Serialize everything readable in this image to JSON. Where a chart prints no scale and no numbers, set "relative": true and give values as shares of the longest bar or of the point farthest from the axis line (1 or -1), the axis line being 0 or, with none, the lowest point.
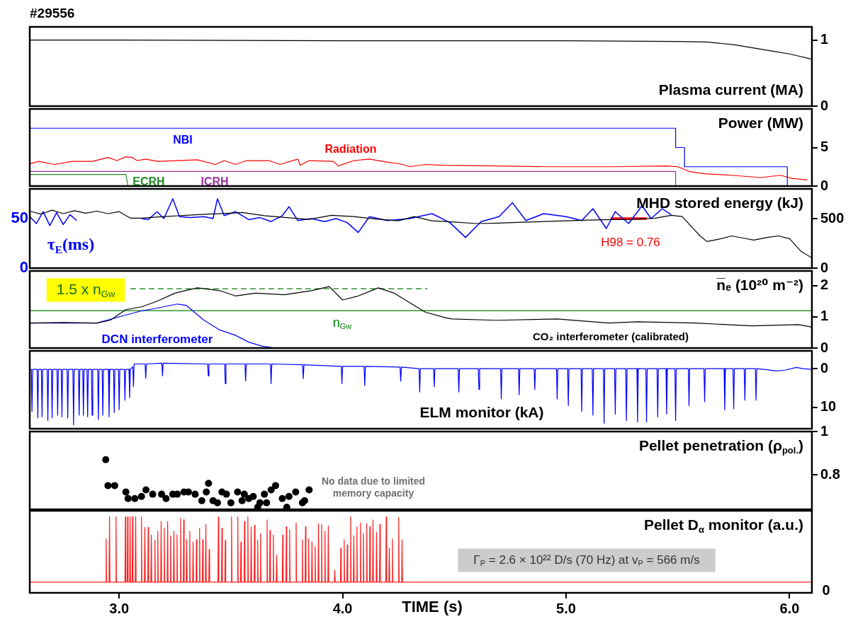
{
  "chart_data": [
    {
      "type": "line",
      "title": "Plasma current (MA)",
      "annotations": [
        "#29556"
      ],
      "x": [
        2.6,
        3.0,
        4.0,
        5.0,
        5.5,
        5.63,
        5.75,
        5.84,
        5.93,
        6.0,
        6.1
      ],
      "values": [
        1.0,
        1.0,
        0.99,
        0.99,
        0.98,
        0.97,
        0.93,
        0.88,
        0.83,
        0.79,
        0.71
      ],
      "color": "#000000",
      "xlim": [
        2.6,
        6.1
      ],
      "ylim": [
        0,
        1.2
      ],
      "yticks": [
        0,
        1
      ],
      "tick_labels": "y"
    },
    {
      "type": "line",
      "title": "Power (MW)",
      "xlim": [
        2.6,
        6.1
      ],
      "ylim": [
        0,
        10
      ],
      "yticks": [
        0,
        5
      ],
      "tick_labels": "y",
      "series": [
        {
          "name": "NBI",
          "color": "#0000ff",
          "x": [
            2.6,
            5.49,
            5.49,
            5.53,
            5.53,
            5.99,
            5.99
          ],
          "values": [
            7.5,
            7.5,
            5.0,
            5.0,
            2.5,
            2.5,
            0
          ]
        },
        {
          "name": "Radiation",
          "color": "#ff0000",
          "x": [
            2.6,
            2.64,
            2.71,
            2.79,
            2.88,
            2.95,
            2.99,
            3.03,
            3.06,
            3.08,
            3.12,
            3.17,
            3.25,
            3.35,
            3.43,
            3.47,
            3.52,
            3.57,
            3.67,
            3.72,
            3.8,
            3.81,
            3.85,
            3.96,
            3.98,
            4.05,
            4.12,
            4.18,
            4.27,
            4.3,
            4.37,
            4.45,
            4.69,
            4.94,
            5.2,
            5.45,
            5.5,
            5.55,
            5.62,
            5.74,
            5.87,
            5.96,
            6.01,
            6.08
          ],
          "values": [
            2.9,
            3.2,
            2.8,
            3.2,
            3.2,
            3.7,
            3.3,
            3.8,
            3.7,
            3.3,
            3.5,
            3.2,
            3.3,
            3.4,
            2.8,
            3.3,
            2.8,
            3.3,
            3.3,
            2.8,
            3.5,
            2.7,
            3.3,
            3.2,
            2.6,
            3.3,
            3.5,
            3.2,
            2.8,
            2.5,
            2.8,
            2.7,
            2.6,
            2.5,
            2.5,
            2.6,
            2.5,
            1.9,
            1.6,
            1.4,
            1.1,
            1.4,
            1.0,
            0.8
          ]
        },
        {
          "name": "ECRH",
          "color": "#228b22",
          "x": [
            2.6,
            3.03,
            3.04,
            3.2
          ],
          "values": [
            1.5,
            1.5,
            0,
            0
          ]
        },
        {
          "name": "ICRH",
          "color": "#993399",
          "x": [
            2.6,
            5.49,
            5.49
          ],
          "values": [
            1.9,
            1.9,
            0
          ]
        }
      ]
    },
    {
      "type": "line",
      "title": "MHD stored energy (kJ)",
      "xlim": [
        2.6,
        6.1
      ],
      "ylim": [
        0,
        800
      ],
      "yticks": [
        0,
        500
      ],
      "y2lim": [
        0,
        80
      ],
      "y2ticks": [
        0,
        50
      ],
      "tick_labels": "y",
      "series": [
        {
          "color": "#000000",
          "x": [
            2.6,
            2.65,
            2.7,
            2.75,
            2.8,
            2.85,
            2.9,
            2.95,
            3.0,
            3.05,
            3.1,
            3.2,
            3.3,
            3.4,
            3.5,
            3.55,
            3.65,
            3.75,
            3.85,
            3.95,
            4.05,
            4.15,
            4.25,
            4.32,
            4.4,
            4.5,
            4.6,
            4.7,
            4.8,
            4.9,
            5.0,
            5.1,
            5.2,
            5.3,
            5.4,
            5.47,
            5.52,
            5.56,
            5.6,
            5.63,
            5.68,
            5.74,
            5.8,
            5.84,
            5.9,
            5.95,
            6.0,
            6.05,
            6.1
          ],
          "values": [
            575,
            545,
            585,
            550,
            580,
            555,
            575,
            550,
            570,
            505,
            505,
            520,
            533,
            545,
            555,
            561,
            530,
            510,
            492,
            533,
            520,
            495,
            478,
            520,
            478,
            465,
            450,
            455,
            464,
            470,
            478,
            485,
            490,
            492,
            505,
            533,
            520,
            420,
            325,
            269,
            290,
            325,
            300,
            283,
            310,
            325,
            297,
            172,
            103
          ]
        },
        {
          "name": "τ$_{E}$(ms)",
          "color": "#0000ff",
          "axis": "y2",
          "x": [
            2.6,
            2.63,
            2.66,
            2.69,
            2.72,
            2.75,
            2.78,
            2.81,
            2.82,
            3.1,
            3.13,
            3.17,
            3.2,
            3.24,
            3.27,
            3.32,
            3.38,
            3.42,
            3.44,
            3.47,
            3.52,
            3.58,
            3.63,
            3.68,
            3.73,
            3.76,
            3.8,
            3.86,
            3.92,
            3.97,
            4.02,
            4.07,
            4.12,
            4.2,
            4.3,
            4.4,
            4.48,
            4.55,
            4.62,
            4.7,
            4.76,
            4.82,
            4.9,
            5.0,
            5.07,
            5.12,
            5.18,
            5.22,
            5.28,
            5.34,
            5.38,
            5.43,
            5.47
          ],
          "values": [
            52,
            45,
            57,
            43,
            56,
            44,
            54,
            48,
            null,
            50,
            49,
            57,
            50,
            70,
            52,
            51,
            52,
            50,
            70,
            53,
            57,
            49,
            51,
            47,
            53,
            62,
            48,
            50,
            47,
            50,
            46,
            36,
            52,
            48,
            50,
            55,
            46,
            31,
            47,
            52,
            66,
            48,
            55,
            52,
            48,
            60,
            40,
            57,
            45,
            63,
            50,
            60,
            54
          ]
        },
        {
          "name": "H98 = 0.76",
          "color": "#ff0000",
          "x": [
            5.2,
            5.36
          ],
          "values": [
            500,
            500
          ]
        }
      ]
    },
    {
      "type": "line",
      "title": "n̅ₑ (10²⁰ m⁻²)",
      "xlim": [
        2.6,
        6.1
      ],
      "ylim": [
        0,
        2.47
      ],
      "yticks": [
        0,
        1,
        2
      ],
      "tick_labels": "y",
      "ref_lines": [
        {
          "axis": "y",
          "value": 1.2,
          "label": "n$_{Gw}$",
          "color": "#008000"
        }
      ],
      "series": [
        {
          "name": "CO₂ interferometer (calibrated)",
          "color": "#000000",
          "x": [
            2.6,
            2.75,
            2.9,
            2.96,
            3.03,
            3.1,
            3.17,
            3.25,
            3.35,
            3.45,
            3.52,
            3.61,
            3.74,
            3.86,
            3.94,
            4.0,
            4.07,
            4.16,
            4.23,
            4.31,
            4.37,
            4.46,
            4.49,
            4.69,
            4.96,
            5.19,
            5.32,
            5.58,
            5.83,
            6.04,
            6.1
          ],
          "values": [
            0.8,
            0.82,
            0.8,
            0.89,
            1.23,
            1.32,
            1.5,
            1.76,
            1.93,
            1.84,
            1.67,
            1.76,
            1.71,
            1.84,
            1.97,
            1.54,
            1.67,
            1.93,
            1.76,
            1.41,
            1.15,
            0.97,
            0.93,
            0.89,
            0.93,
            0.8,
            0.84,
            0.8,
            0.71,
            0.75,
            0.67
          ]
        },
        {
          "name": "DCN interferometer",
          "color": "#0000ff",
          "x": [
            2.6,
            2.9,
            3.01,
            3.1,
            3.17,
            3.26,
            3.3,
            3.38,
            3.45,
            3.52,
            3.58,
            3.64,
            3.68
          ],
          "values": [
            0.8,
            0.8,
            1.02,
            1.19,
            1.28,
            1.41,
            1.37,
            0.89,
            0.58,
            0.41,
            0.19,
            0.06,
            0.02
          ]
        },
        {
          "name": "1.5 x n$_{Gw}$",
          "color": "#008000",
          "line_style": "dashed",
          "x": [
            3.05,
            4.38
          ],
          "values": [
            1.9,
            1.9
          ]
        }
      ]
    },
    {
      "type": "line",
      "title": "ELM monitor (kA)",
      "xlim": [
        2.6,
        6.1
      ],
      "ylim": [
        15.6,
        -4.6
      ],
      "yticks": [
        0,
        10
      ],
      "tick_labels": "y",
      "color": "#0000ff",
      "x": [
        2.6,
        2.607,
        2.61,
        2.613,
        2.633,
        2.636,
        2.639,
        2.652,
        2.655,
        2.658,
        2.678,
        2.681,
        2.684,
        2.697,
        2.7,
        2.703,
        2.722,
        2.725,
        2.728,
        2.741,
        2.744,
        2.747,
        2.767,
        2.77,
        2.773,
        2.793,
        2.796,
        2.799,
        2.818,
        2.821,
        2.824,
        2.837,
        2.84,
        2.843,
        2.856,
        2.859,
        2.862,
        2.876,
        2.879,
        2.882,
        2.904,
        2.907,
        2.91,
        2.924,
        2.927,
        2.93,
        2.952,
        2.955,
        2.958,
        2.975,
        2.978,
        2.981,
        2.997,
        3.0,
        3.003,
        3.023,
        3.026,
        3.029,
        3.044,
        3.047,
        3.05,
        3.061,
        3.064,
        3.067,
        3.116,
        3.119,
        3.122,
        3.191,
        3.194,
        3.197,
        3.396,
        3.399,
        3.402,
        3.472,
        3.475,
        3.478,
        3.563,
        3.566,
        3.569,
        3.677,
        3.68,
        3.683,
        3.821,
        3.824,
        3.827,
        3.994,
        3.997,
        4.0,
        4.096,
        4.099,
        4.102,
        4.257,
        4.26,
        4.263,
        4.342,
        4.345,
        4.348,
        4.407,
        4.41,
        4.413,
        4.517,
        4.52,
        4.523,
        4.607,
        4.61,
        4.613,
        4.707,
        4.71,
        4.713,
        4.787,
        4.79,
        4.793,
        4.857,
        4.86,
        4.863,
        4.957,
        4.96,
        4.963,
        5.007,
        5.01,
        5.013,
        5.067,
        5.07,
        5.073,
        5.117,
        5.12,
        5.123,
        5.167,
        5.17,
        5.173,
        5.217,
        5.22,
        5.223,
        5.267,
        5.27,
        5.273,
        5.317,
        5.32,
        5.323,
        5.357,
        5.36,
        5.363,
        5.407,
        5.41,
        5.413,
        5.447,
        5.45,
        5.453,
        5.487,
        5.49,
        5.493,
        5.547,
        5.55,
        5.553,
        5.617,
        5.62,
        5.623,
        5.707,
        5.71,
        5.713,
        5.747,
        5.75,
        5.753,
        5.797,
        5.8,
        5.803,
        5.847,
        5.85,
        5.853,
        5.9,
        5.94,
        5.98,
        6.03,
        6.06,
        6.1
      ],
      "values": [
        0.2,
        0.2,
        11.1,
        0.2,
        0.2,
        12.8,
        0.2,
        0.2,
        12.5,
        0.2,
        0.2,
        13.5,
        0.2,
        0.2,
        12.8,
        0.2,
        0.2,
        12.1,
        0.2,
        0.2,
        12.5,
        0.2,
        0.2,
        12.8,
        0.2,
        0.2,
        14.6,
        0.2,
        0.2,
        12.1,
        0.2,
        0.2,
        12.1,
        0.2,
        0.2,
        12.5,
        0.2,
        0.2,
        12.1,
        0.2,
        0.2,
        13.2,
        0.2,
        0.2,
        12.1,
        0.2,
        0.2,
        12.5,
        0.2,
        0.2,
        11.4,
        0.2,
        0.2,
        10.7,
        0.2,
        0.2,
        8.2,
        0.2,
        0.2,
        7.5,
        0.2,
        -0.5,
        4.7,
        -1.2,
        -1.2,
        2.5,
        -1.2,
        -1.4,
        1.9,
        -1.4,
        -1.2,
        1.9,
        -1.2,
        -1.2,
        3.9,
        -1.2,
        -1.2,
        3.2,
        -1.2,
        -1.2,
        3.9,
        -1.2,
        -1.0,
        2.6,
        -1.0,
        -0.6,
        3.9,
        -0.6,
        -0.6,
        4.4,
        -0.6,
        -0.4,
        3.3,
        -0.4,
        0,
        6.1,
        0,
        0,
        4.7,
        0,
        0,
        6.1,
        0,
        0,
        5.4,
        0,
        0,
        7.9,
        0,
        0,
        6.8,
        0,
        0,
        5.4,
        0,
        0,
        7.9,
        0,
        0,
        9.6,
        0,
        0,
        11.1,
        0,
        0,
        12.1,
        0,
        0,
        14.2,
        0,
        0,
        11.8,
        0,
        0,
        13.5,
        0,
        0,
        13.9,
        0,
        0,
        13.9,
        0,
        0,
        12.5,
        0,
        0,
        11.8,
        0,
        0,
        13.5,
        0,
        0,
        9.6,
        0,
        0,
        8.6,
        0,
        0,
        10.7,
        0,
        0,
        10.4,
        0,
        0,
        8.2,
        0,
        0,
        8.2,
        0,
        0.3,
        0.6,
        0.4,
        -0.3,
        0,
        0.2
      ]
    },
    {
      "type": "scatter",
      "title": "Pellet penetration (ρ$_{pol.}$)",
      "annotations": [
        "No data due to limited memory capacity"
      ],
      "xlim": [
        2.6,
        6.1
      ],
      "ylim": [
        0.64,
        1.0
      ],
      "yticks": [
        0.8,
        1
      ],
      "tick_labels": "y",
      "marker": "circle",
      "color": "#000000",
      "x": [
        2.94,
        2.95,
        2.98,
        3.03,
        3.04,
        3.07,
        3.1,
        3.12,
        3.15,
        3.19,
        3.21,
        3.24,
        3.26,
        3.29,
        3.31,
        3.34,
        3.37,
        3.39,
        3.4,
        3.42,
        3.44,
        3.46,
        3.48,
        3.5,
        3.53,
        3.55,
        3.56,
        3.58,
        3.6,
        3.62,
        3.63,
        3.65,
        3.66,
        3.68,
        3.7,
        3.73,
        3.75,
        3.76,
        3.79,
        3.82,
        3.83,
        3.85
      ],
      "values": [
        0.87,
        0.75,
        0.75,
        0.72,
        0.69,
        0.69,
        0.7,
        0.73,
        0.71,
        0.71,
        0.69,
        0.71,
        0.71,
        0.72,
        0.72,
        0.71,
        0.68,
        0.72,
        0.76,
        0.68,
        0.67,
        0.72,
        0.71,
        0.67,
        0.72,
        0.68,
        0.71,
        0.69,
        0.7,
        0.65,
        0.67,
        0.71,
        0.67,
        0.73,
        0.75,
        0.69,
        0.65,
        0.7,
        0.72,
        0.67,
        0.68,
        0.73
      ]
    },
    {
      "type": "line",
      "title": "Pellet D$_{α}$ monitor (a.u.)",
      "xlabel": "TIME (s)",
      "annotations": [
        "Γ$_{P}$ = 2.6 × 10²² D/s (70 Hz) at v$_{P}$ = 566 m/s",
        "0"
      ],
      "relative": true,
      "xlim": [
        2.6,
        6.1
      ],
      "xticks": [
        {
          "value": 3,
          "label": "3.0"
        },
        {
          "value": 4,
          "label": "4.0"
        },
        {
          "value": 5,
          "label": "5.0"
        },
        {
          "value": 6,
          "label": "6.0"
        }
      ],
      "tick_labels": "x",
      "color": "#ff2020",
      "x": [
        2.6,
        2.94,
        2.942,
        2.944,
        2.955,
        2.957,
        2.959,
        2.984,
        2.986,
        2.988,
        3.026,
        3.028,
        3.03,
        3.036,
        3.038,
        3.04,
        3.047,
        3.049,
        3.051,
        3.058,
        3.06,
        3.062,
        3.072,
        3.074,
        3.076,
        3.098,
        3.1,
        3.102,
        3.113,
        3.115,
        3.117,
        3.128,
        3.13,
        3.132,
        3.142,
        3.144,
        3.146,
        3.158,
        3.16,
        3.162,
        3.171,
        3.173,
        3.175,
        3.186,
        3.188,
        3.19,
        3.2,
        3.202,
        3.204,
        3.215,
        3.217,
        3.219,
        3.228,
        3.23,
        3.232,
        3.243,
        3.245,
        3.247,
        3.257,
        3.259,
        3.261,
        3.273,
        3.275,
        3.277,
        3.287,
        3.289,
        3.291,
        3.3,
        3.302,
        3.304,
        3.314,
        3.316,
        3.318,
        3.329,
        3.331,
        3.333,
        3.344,
        3.346,
        3.348,
        3.358,
        3.36,
        3.362,
        3.372,
        3.374,
        3.376,
        3.386,
        3.388,
        3.39,
        3.401,
        3.403,
        3.405,
        3.442,
        3.444,
        3.446,
        3.458,
        3.46,
        3.462,
        3.473,
        3.475,
        3.477,
        3.501,
        3.503,
        3.505,
        3.529,
        3.531,
        3.533,
        3.543,
        3.545,
        3.547,
        3.559,
        3.561,
        3.563,
        3.574,
        3.576,
        3.578,
        3.589,
        3.591,
        3.593,
        3.604,
        3.606,
        3.608,
        3.618,
        3.62,
        3.622,
        3.631,
        3.633,
        3.635,
        3.66,
        3.662,
        3.664,
        3.673,
        3.675,
        3.677,
        3.688,
        3.69,
        3.692,
        3.703,
        3.705,
        3.707,
        3.73,
        3.732,
        3.734,
        3.746,
        3.748,
        3.75,
        3.761,
        3.763,
        3.765,
        3.79,
        3.792,
        3.794,
        3.818,
        3.82,
        3.822,
        3.832,
        3.834,
        3.836,
        3.846,
        3.848,
        3.85,
        3.861,
        3.863,
        3.865,
        3.875,
        3.877,
        3.879,
        3.89,
        3.892,
        3.894,
        3.904,
        3.906,
        3.908,
        3.919,
        3.921,
        3.923,
        3.934,
        3.936,
        3.938,
        3.963,
        3.965,
        3.967,
        3.99,
        3.992,
        3.994,
        4.005,
        4.007,
        4.009,
        4.019,
        4.021,
        4.023,
        4.034,
        4.036,
        4.038,
        4.048,
        4.05,
        4.052,
        4.062,
        4.064,
        4.066,
        4.078,
        4.08,
        4.082,
        4.091,
        4.093,
        4.095,
        4.106,
        4.108,
        4.11,
        4.12,
        4.122,
        4.124,
        4.134,
        4.136,
        4.138,
        4.15,
        4.152,
        4.154,
        4.165,
        4.167,
        4.169,
        4.193,
        4.195,
        4.197,
        4.207,
        4.209,
        4.211,
        4.221,
        4.223,
        4.225,
        4.249,
        4.251,
        4.253,
        4.264,
        4.266,
        4.268,
        6.1
      ],
      "values": [
        0.14,
        0.14,
        0.71,
        0.14,
        0.14,
        1,
        0.14,
        0.14,
        1,
        0.14,
        0.14,
        1,
        0.14,
        0.14,
        1,
        0.14,
        0.14,
        1,
        0.14,
        0.14,
        1,
        0.14,
        0.14,
        1,
        0.14,
        0.14,
        1,
        0.14,
        0.14,
        0.86,
        0.14,
        0.14,
        0.86,
        0.14,
        0.14,
        0.76,
        0.14,
        0.14,
        0.69,
        0.14,
        0.14,
        0.81,
        0.14,
        0.14,
        0.94,
        0.14,
        0.14,
        0.85,
        0.14,
        0.14,
        0.94,
        0.14,
        0.14,
        0.75,
        0.14,
        0.14,
        0.81,
        0.14,
        0.14,
        0.76,
        0.14,
        0.14,
        0.98,
        0.14,
        0.14,
        0.96,
        0.14,
        0.14,
        0.7,
        0.14,
        0.14,
        0.81,
        0.14,
        0.14,
        0.67,
        0.14,
        0.14,
        0.7,
        0.14,
        0.14,
        0.85,
        0.14,
        0.14,
        0.7,
        0.14,
        0.14,
        0.9,
        0.14,
        0.14,
        0.57,
        0.14,
        0.14,
        1,
        0.14,
        0.14,
        0.85,
        0.14,
        0.14,
        0.69,
        0.14,
        0.14,
        1,
        0.14,
        0.14,
        1,
        0.14,
        0.14,
        0.67,
        0.14,
        0.14,
        0.94,
        0.14,
        0.14,
        1,
        0.14,
        0.14,
        0.87,
        0.14,
        0.14,
        0.89,
        0.14,
        0.14,
        0.69,
        0.14,
        0.14,
        0.78,
        0.14,
        0.14,
        0.96,
        0.14,
        0.14,
        0.82,
        0.14,
        0.14,
        0.76,
        0.14,
        0.14,
        0.5,
        0.14,
        0.14,
        0.76,
        0.14,
        0.14,
        0.87,
        0.14,
        0.14,
        0.83,
        0.14,
        0.14,
        0.92,
        0.14,
        0.14,
        0.7,
        0.14,
        0.14,
        0.87,
        0.14,
        0.14,
        0.71,
        0.14,
        0.14,
        0.67,
        0.14,
        0.14,
        0.61,
        0.14,
        0.14,
        0.91,
        0.14,
        0.14,
        0.9,
        0.14,
        0.14,
        0.81,
        0.14,
        0.14,
        0.88,
        0.14,
        0.14,
        0.3,
        0.14,
        0.14,
        0.59,
        0.14,
        0.14,
        0.7,
        0.14,
        0.14,
        0.63,
        0.14,
        0.14,
        1,
        0.14,
        0.14,
        0.75,
        0.14,
        0.14,
        0.87,
        0.14,
        0.14,
        0.92,
        0.14,
        0.14,
        0.78,
        0.14,
        0.14,
        0.91,
        0.14,
        0.14,
        0.87,
        0.14,
        0.14,
        0.96,
        0.14,
        0.14,
        0.8,
        0.14,
        0.14,
        0.9,
        0.14,
        0.14,
        1,
        0.14,
        0.14,
        0.59,
        0.14,
        0.14,
        0.71,
        0.14,
        0.14,
        0.99,
        0.14,
        0.14,
        0.7,
        0.14,
        0.14
      ]
    }
  ]
}
